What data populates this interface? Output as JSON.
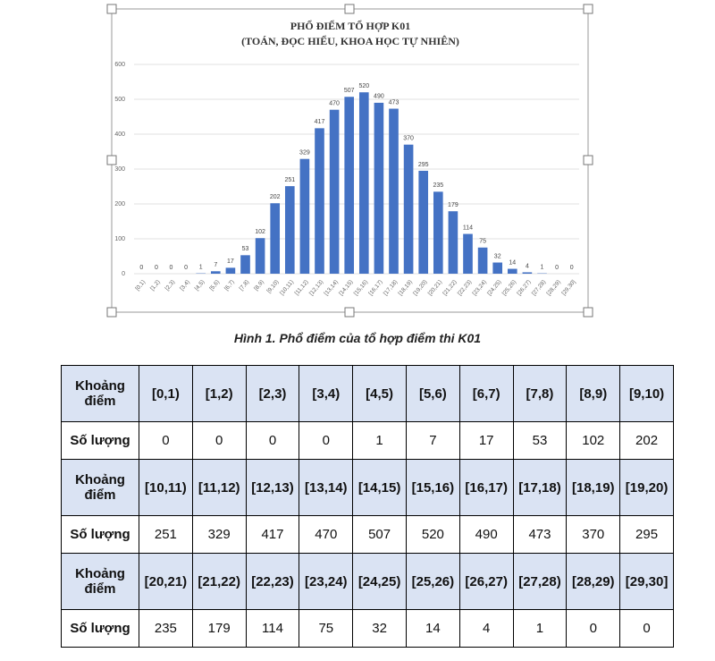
{
  "chart_data": {
    "type": "bar",
    "title": "PHỔ ĐIỂM TỔ HỢP K01",
    "subtitle": "(TOÁN, ĐỌC HIỂU, KHOA HỌC TỰ NHIÊN)",
    "categories": [
      "[0,1)",
      "[1,2)",
      "[2,3)",
      "[3,4)",
      "[4,5)",
      "[5,6)",
      "[6,7)",
      "[7,8)",
      "[8,9)",
      "[9,10)",
      "[10,11)",
      "[11,12)",
      "[12,13)",
      "[13,14)",
      "[14,15)",
      "[15,16)",
      "[16,17)",
      "[17,18)",
      "[18,19)",
      "[19,20)",
      "[20,21)",
      "[21,22)",
      "[22,23)",
      "[23,24)",
      "[24,25)",
      "[25,26)",
      "[26,27)",
      "[27,28)",
      "[28,29)",
      "[29,30]"
    ],
    "values": [
      0,
      0,
      0,
      0,
      1,
      7,
      17,
      53,
      102,
      202,
      251,
      329,
      417,
      470,
      507,
      520,
      490,
      473,
      370,
      295,
      235,
      179,
      114,
      75,
      32,
      14,
      4,
      1,
      0,
      0
    ],
    "color": "#4472c4",
    "ylim": [
      0,
      600
    ],
    "yticks": [
      0,
      100,
      200,
      300,
      400,
      500,
      600
    ],
    "grid": true
  },
  "caption": "Hình 1. Phổ điểm của tổ hợp điểm thi K01",
  "table": {
    "rows": [
      [
        "Khoảng điểm",
        "[0,1)",
        "[1,2)",
        "[2,3)",
        "[3,4)",
        "[4,5)",
        "[5,6)",
        "[6,7)",
        "[7,8)",
        "[8,9)",
        "[9,10)"
      ],
      [
        "Số lượng",
        "0",
        "0",
        "0",
        "0",
        "1",
        "7",
        "17",
        "53",
        "102",
        "202"
      ],
      [
        "Khoảng điểm",
        "[10,11)",
        "[11,12)",
        "[12,13)",
        "[13,14)",
        "[14,15)",
        "[15,16)",
        "[16,17)",
        "[17,18)",
        "[18,19)",
        "[19,20)"
      ],
      [
        "Số lượng",
        "251",
        "329",
        "417",
        "470",
        "507",
        "520",
        "490",
        "473",
        "370",
        "295"
      ],
      [
        "Khoảng điểm",
        "[20,21)",
        "[21,22)",
        "[22,23)",
        "[23,24)",
        "[24,25)",
        "[25,26)",
        "[26,27)",
        "[27,28)",
        "[28,29)",
        "[29,30]"
      ],
      [
        "Số lượng",
        "235",
        "179",
        "114",
        "75",
        "32",
        "14",
        "4",
        "1",
        "0",
        "0"
      ]
    ]
  }
}
